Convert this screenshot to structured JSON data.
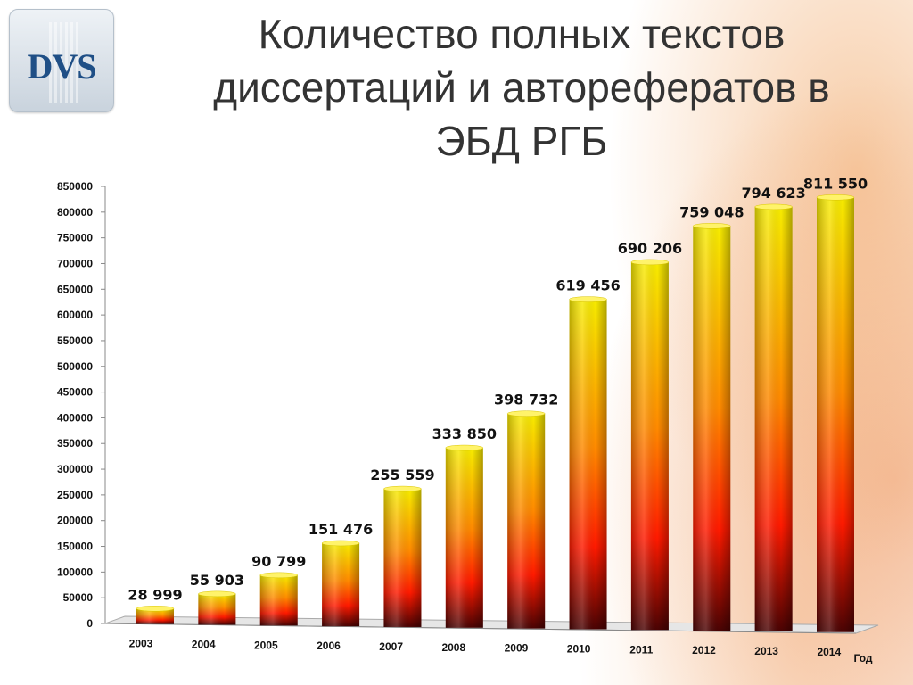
{
  "title": "Количество полных текстов\nдиссертаций и авторефератов в\nЭБД РГБ",
  "logo": {
    "text": "DVS"
  },
  "chart_data": {
    "type": "bar",
    "title": "Количество полных текстов диссертаций и авторефератов в ЭБД РГБ",
    "xlabel": "Год",
    "ylabel": "",
    "ylim": [
      0,
      850000
    ],
    "yticks": [
      0,
      50000,
      100000,
      150000,
      200000,
      250000,
      300000,
      350000,
      400000,
      450000,
      500000,
      550000,
      600000,
      650000,
      700000,
      750000,
      800000,
      850000
    ],
    "categories": [
      "2003",
      "2004",
      "2005",
      "2006",
      "2007",
      "2008",
      "2009",
      "2010",
      "2011",
      "2012",
      "2013",
      "2014"
    ],
    "values": [
      28999,
      55903,
      90799,
      151476,
      255559,
      333850,
      398732,
      619456,
      690206,
      759048,
      794623,
      811550
    ],
    "data_labels": [
      "28 999",
      "55 903",
      "90 799",
      "151 476",
      "255 559",
      "333 850",
      "398 732",
      "619 456",
      "690 206",
      "759 048",
      "794 623",
      "811 550"
    ],
    "grid": false,
    "legend": "none",
    "colors": {
      "top": "#f5e400",
      "middle": "#ff2a00",
      "bottom": "#5a0505"
    }
  }
}
